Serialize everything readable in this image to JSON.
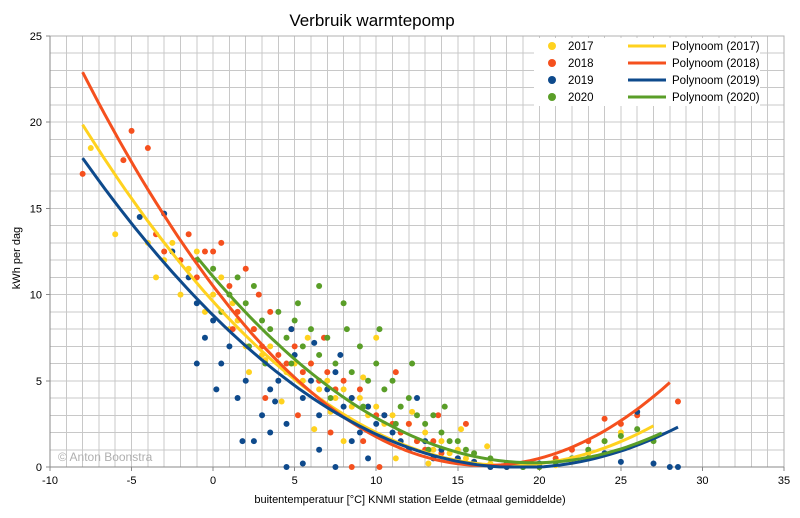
{
  "chart_data": {
    "type": "scatter",
    "title": "Verbruik warmtepomp",
    "xlabel": "buitentemperatuur [°C] KNMI station Eelde (etmaal gemiddelde)",
    "ylabel": "kWh per dag",
    "xlim": [
      -10,
      35
    ],
    "ylim": [
      0,
      25
    ],
    "x_ticks": [
      -10,
      -5,
      0,
      5,
      10,
      15,
      20,
      25,
      30,
      35
    ],
    "y_ticks": [
      0,
      5,
      10,
      15,
      20,
      25
    ],
    "grid": true,
    "legend_position": "top-right",
    "watermark": "© Anton Boonstra",
    "series": [
      {
        "name": "2017",
        "color": "#ffd21f",
        "points": [
          [
            -7.5,
            18.5
          ],
          [
            -6,
            13.5
          ],
          [
            -4,
            13
          ],
          [
            -3.5,
            11
          ],
          [
            -2.5,
            13
          ],
          [
            -2,
            10
          ],
          [
            -1.5,
            11.5
          ],
          [
            -1,
            12.5
          ],
          [
            -0.5,
            9
          ],
          [
            0,
            10
          ],
          [
            0.5,
            11
          ],
          [
            1,
            8
          ],
          [
            1.5,
            8.5
          ],
          [
            2,
            7
          ],
          [
            2.5,
            8
          ],
          [
            3,
            6.5
          ],
          [
            3.5,
            7
          ],
          [
            4,
            6
          ],
          [
            4.5,
            5.5
          ],
          [
            5,
            6
          ],
          [
            5.5,
            5
          ],
          [
            6,
            6
          ],
          [
            6.5,
            4.5
          ],
          [
            7,
            5
          ],
          [
            7.5,
            4
          ],
          [
            8,
            4.5
          ],
          [
            8.5,
            3.5
          ],
          [
            9,
            4
          ],
          [
            9.5,
            3
          ],
          [
            10,
            3.5
          ],
          [
            10.5,
            2.5
          ],
          [
            11,
            3
          ],
          [
            11.5,
            2
          ],
          [
            12,
            2.5
          ],
          [
            12.5,
            1.5
          ],
          [
            13,
            2
          ],
          [
            13.5,
            1
          ],
          [
            14,
            1.5
          ],
          [
            14.5,
            0.8
          ],
          [
            15,
            1
          ],
          [
            15.5,
            0.5
          ],
          [
            16,
            0.3
          ],
          [
            17,
            0.2
          ],
          [
            18,
            0
          ],
          [
            19,
            0
          ],
          [
            20,
            0
          ],
          [
            21,
            0.1
          ],
          [
            22,
            0.3
          ],
          [
            23,
            0.8
          ],
          [
            24,
            1.5
          ],
          [
            25,
            2
          ],
          [
            -3,
            12
          ],
          [
            1.2,
            9.5
          ],
          [
            3.2,
            6.2
          ],
          [
            5.8,
            7.5
          ],
          [
            7.2,
            3.2
          ],
          [
            9.2,
            5.2
          ],
          [
            12.2,
            3.2
          ],
          [
            10,
            7.5
          ],
          [
            6.2,
            2.2
          ],
          [
            8,
            1.5
          ],
          [
            11.2,
            0.5
          ],
          [
            13.2,
            0.2
          ],
          [
            4.2,
            3.8
          ],
          [
            2.2,
            5.5
          ],
          [
            15.2,
            2.2
          ],
          [
            16.8,
            1.2
          ]
        ]
      },
      {
        "name": "2018",
        "color": "#f5501e",
        "points": [
          [
            -8,
            17
          ],
          [
            -5.5,
            17.8
          ],
          [
            -5,
            19.5
          ],
          [
            -4,
            18.5
          ],
          [
            -3.5,
            13.5
          ],
          [
            -3,
            12.5
          ],
          [
            -2,
            12
          ],
          [
            -1.5,
            13.5
          ],
          [
            -1,
            11
          ],
          [
            -0.5,
            12.5
          ],
          [
            0,
            12.5
          ],
          [
            0.5,
            13
          ],
          [
            1,
            10.5
          ],
          [
            1.5,
            9
          ],
          [
            2,
            11.5
          ],
          [
            2.5,
            8
          ],
          [
            3,
            7
          ],
          [
            3.5,
            9
          ],
          [
            4,
            6.5
          ],
          [
            4.5,
            6
          ],
          [
            5,
            7
          ],
          [
            5.5,
            5.5
          ],
          [
            6,
            6
          ],
          [
            6.5,
            5
          ],
          [
            7,
            5.5
          ],
          [
            7.5,
            4.5
          ],
          [
            8,
            5
          ],
          [
            8.5,
            4
          ],
          [
            9,
            4.5
          ],
          [
            9.5,
            3.5
          ],
          [
            10,
            3
          ],
          [
            10.5,
            3
          ],
          [
            11,
            2.5
          ],
          [
            11.5,
            2
          ],
          [
            12,
            2.5
          ],
          [
            12.5,
            1.5
          ],
          [
            13,
            1
          ],
          [
            13.5,
            1.5
          ],
          [
            14,
            0.8
          ],
          [
            15,
            0.5
          ],
          [
            16,
            0.3
          ],
          [
            17,
            0
          ],
          [
            18,
            0
          ],
          [
            19,
            0.2
          ],
          [
            20,
            0
          ],
          [
            21,
            0.5
          ],
          [
            22,
            1
          ],
          [
            23,
            1.5
          ],
          [
            24,
            2.8
          ],
          [
            25,
            2.5
          ],
          [
            26,
            3
          ],
          [
            28.5,
            3.8
          ],
          [
            1.2,
            8
          ],
          [
            3.2,
            4
          ],
          [
            5.2,
            3
          ],
          [
            7.2,
            2
          ],
          [
            9.2,
            1.5
          ],
          [
            2.8,
            10
          ],
          [
            4.8,
            8
          ],
          [
            6.8,
            7.5
          ],
          [
            11.2,
            5.5
          ],
          [
            13.8,
            3
          ],
          [
            15.5,
            2.5
          ],
          [
            8.5,
            0
          ],
          [
            10.2,
            0
          ]
        ]
      },
      {
        "name": "2019",
        "color": "#0e4a8c",
        "points": [
          [
            -4.5,
            14.5
          ],
          [
            -3,
            14.7
          ],
          [
            -2.5,
            12.5
          ],
          [
            -1.5,
            11
          ],
          [
            -1,
            9.5
          ],
          [
            -0.5,
            7.5
          ],
          [
            0,
            8.5
          ],
          [
            0.5,
            6
          ],
          [
            1,
            7
          ],
          [
            1.5,
            4
          ],
          [
            2,
            5
          ],
          [
            2.5,
            1.5
          ],
          [
            3,
            3
          ],
          [
            3.5,
            4.5
          ],
          [
            4,
            5
          ],
          [
            4.5,
            2.5
          ],
          [
            5,
            6.5
          ],
          [
            5.5,
            4
          ],
          [
            6,
            5
          ],
          [
            6.5,
            3
          ],
          [
            7,
            4.5
          ],
          [
            7.5,
            5.5
          ],
          [
            8,
            3.5
          ],
          [
            8.5,
            4
          ],
          [
            9,
            2
          ],
          [
            9.5,
            3.5
          ],
          [
            10,
            2.5
          ],
          [
            10.5,
            3
          ],
          [
            11,
            2
          ],
          [
            11.5,
            1.5
          ],
          [
            12,
            1
          ],
          [
            12.5,
            4
          ],
          [
            13,
            1.5
          ],
          [
            13.5,
            0.5
          ],
          [
            14,
            1
          ],
          [
            15,
            0.5
          ],
          [
            16,
            0.3
          ],
          [
            17,
            0
          ],
          [
            18,
            0
          ],
          [
            19,
            0
          ],
          [
            20,
            0.2
          ],
          [
            21,
            0.3
          ],
          [
            22,
            0.5
          ],
          [
            23,
            0.5
          ],
          [
            24,
            0.8
          ],
          [
            25,
            0.3
          ],
          [
            26,
            3.2
          ],
          [
            27,
            0.2
          ],
          [
            28,
            0
          ],
          [
            28.5,
            0
          ],
          [
            -1,
            6
          ],
          [
            0.2,
            4.5
          ],
          [
            1.8,
            1.5
          ],
          [
            3.5,
            2
          ],
          [
            4.5,
            0
          ],
          [
            5.5,
            0.2
          ],
          [
            6.5,
            1
          ],
          [
            7.5,
            0
          ],
          [
            8.5,
            1.5
          ],
          [
            9.5,
            0.5
          ],
          [
            4.8,
            8
          ],
          [
            6.2,
            7.2
          ],
          [
            7.8,
            6.5
          ],
          [
            3.8,
            3.8
          ]
        ]
      },
      {
        "name": "2020",
        "color": "#5a9e28",
        "points": [
          [
            -1,
            12
          ],
          [
            0,
            11.5
          ],
          [
            0.5,
            9
          ],
          [
            1,
            10
          ],
          [
            1.5,
            11
          ],
          [
            2,
            9.5
          ],
          [
            2.5,
            10.5
          ],
          [
            3,
            8.5
          ],
          [
            3.5,
            8
          ],
          [
            4,
            9
          ],
          [
            4.5,
            7.5
          ],
          [
            5,
            8.5
          ],
          [
            5.5,
            7
          ],
          [
            6,
            8
          ],
          [
            6.5,
            6.5
          ],
          [
            7,
            7.5
          ],
          [
            7.5,
            6
          ],
          [
            8,
            9.5
          ],
          [
            8.5,
            5.5
          ],
          [
            9,
            7
          ],
          [
            9.5,
            5
          ],
          [
            10,
            6
          ],
          [
            10.5,
            4.5
          ],
          [
            11,
            5
          ],
          [
            11.5,
            3.5
          ],
          [
            12,
            4
          ],
          [
            12.5,
            3
          ],
          [
            13,
            2.5
          ],
          [
            13.5,
            3
          ],
          [
            14,
            2
          ],
          [
            14.5,
            1.5
          ],
          [
            15,
            1.5
          ],
          [
            15.5,
            1
          ],
          [
            16,
            0.8
          ],
          [
            17,
            0.5
          ],
          [
            18,
            0.2
          ],
          [
            19,
            0
          ],
          [
            20,
            0
          ],
          [
            21,
            0.3
          ],
          [
            22,
            0.5
          ],
          [
            23,
            1
          ],
          [
            24,
            1.5
          ],
          [
            25,
            1.8
          ],
          [
            26,
            2.2
          ],
          [
            27,
            1.5
          ],
          [
            6.5,
            10.5
          ],
          [
            8.2,
            8
          ],
          [
            10.2,
            8
          ],
          [
            4.8,
            6
          ],
          [
            7.2,
            4
          ],
          [
            9.2,
            3.5
          ],
          [
            11.2,
            2.5
          ],
          [
            13.2,
            1
          ],
          [
            2.2,
            7
          ],
          [
            3.2,
            6
          ],
          [
            5.2,
            9.5
          ],
          [
            12.2,
            6
          ],
          [
            14.2,
            3.5
          ]
        ]
      }
    ],
    "trendlines": [
      {
        "name": "Polynoom (2017)",
        "color": "#ffd21f",
        "x_range": [
          -8,
          27
        ],
        "coefficients": [
          9.6,
          -1.05,
          0.029
        ]
      },
      {
        "name": "Polynoom (2018)",
        "color": "#f5501e",
        "x_range": [
          -8,
          28
        ],
        "coefficients": [
          10.5,
          -1.25,
          0.0375
        ]
      },
      {
        "name": "Polynoom (2019)",
        "color": "#0e4a8c",
        "x_range": [
          -8,
          28.5
        ],
        "coefficients": [
          8.8,
          -0.94,
          0.025
        ]
      },
      {
        "name": "Polynoom (2020)",
        "color": "#5a9e28",
        "x_range": [
          -1,
          27.5
        ],
        "coefficients": [
          11.05,
          -1.1,
          0.028
        ]
      }
    ]
  }
}
